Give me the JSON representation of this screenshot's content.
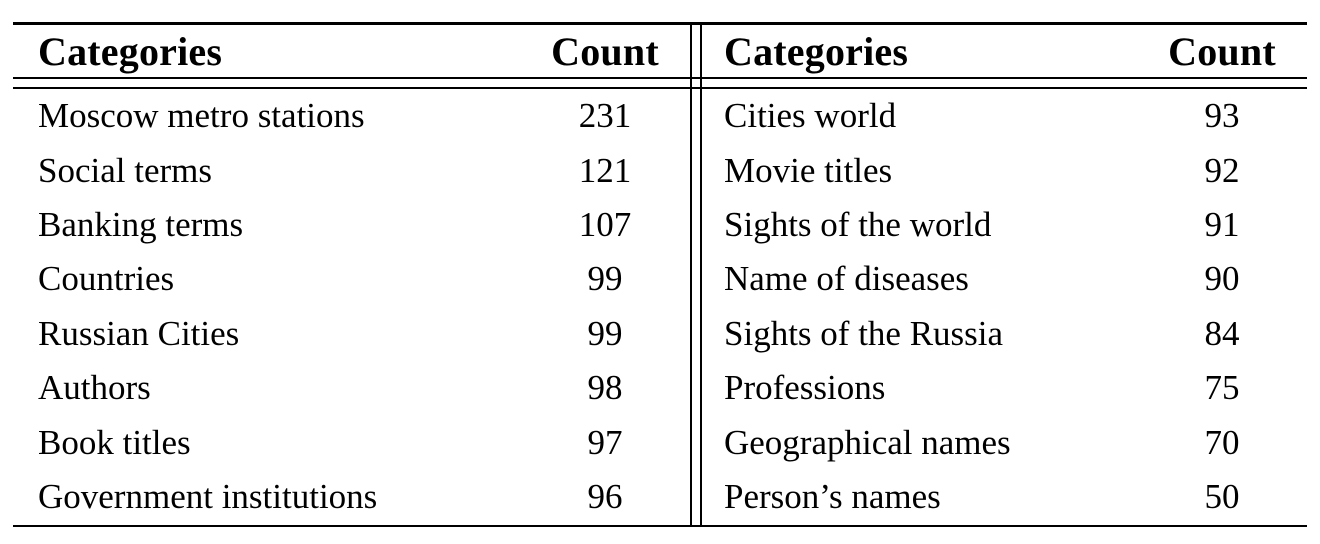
{
  "table": {
    "left": {
      "header": {
        "category": "Categories",
        "count": "Count"
      },
      "rows": [
        {
          "category": "Moscow metro stations",
          "count": "231"
        },
        {
          "category": "Social terms",
          "count": "121"
        },
        {
          "category": "Banking terms",
          "count": "107"
        },
        {
          "category": "Countries",
          "count": "99"
        },
        {
          "category": "Russian Cities",
          "count": "99"
        },
        {
          "category": "Authors",
          "count": "98"
        },
        {
          "category": "Book titles",
          "count": "97"
        },
        {
          "category": "Government institutions",
          "count": "96"
        }
      ]
    },
    "right": {
      "header": {
        "category": "Categories",
        "count": "Count"
      },
      "rows": [
        {
          "category": "Cities world",
          "count": "93"
        },
        {
          "category": "Movie titles",
          "count": "92"
        },
        {
          "category": "Sights of the world",
          "count": "91"
        },
        {
          "category": "Name of diseases",
          "count": "90"
        },
        {
          "category": "Sights of the Russia",
          "count": "84"
        },
        {
          "category": "Professions",
          "count": "75"
        },
        {
          "category": "Geographical names",
          "count": "70"
        },
        {
          "category": "Person’s names",
          "count": "50"
        }
      ]
    },
    "colors": {
      "rule": "#000000",
      "text": "#000000",
      "background": "#ffffff"
    }
  }
}
